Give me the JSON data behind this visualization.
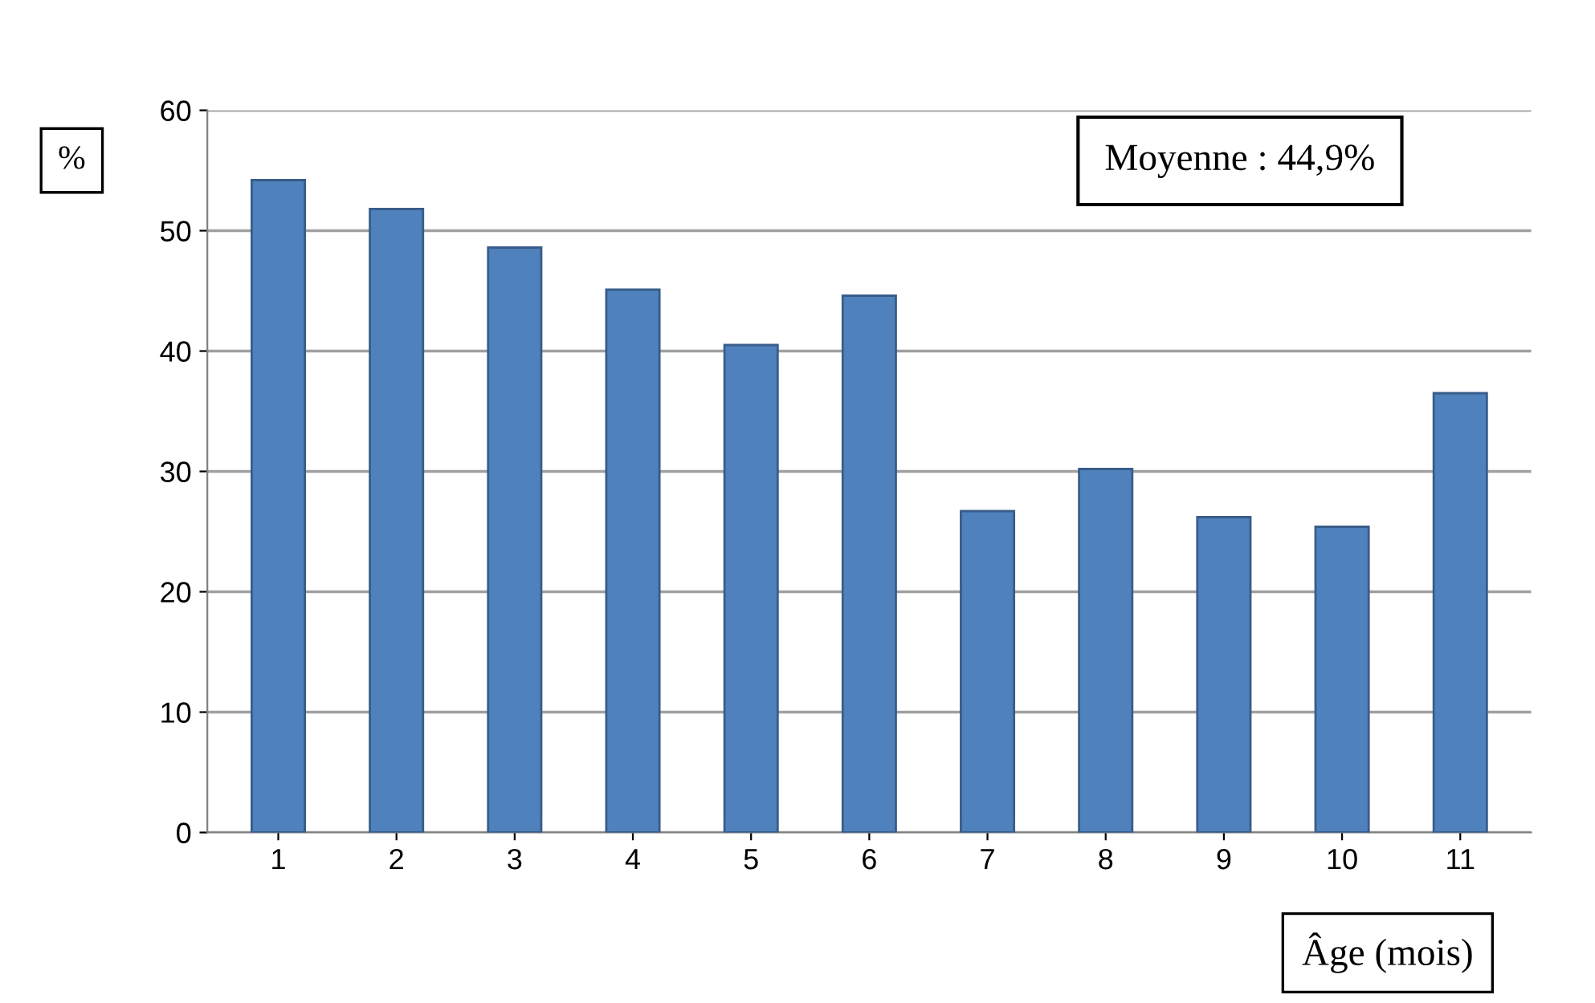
{
  "chart_data": {
    "type": "bar",
    "categories": [
      "1",
      "2",
      "3",
      "4",
      "5",
      "6",
      "7",
      "8",
      "9",
      "10",
      "11"
    ],
    "values": [
      54.2,
      51.8,
      48.6,
      45.1,
      40.5,
      44.6,
      26.7,
      30.2,
      26.2,
      25.4,
      36.5
    ],
    "color": "#4f81bd",
    "ylabel": "%",
    "xlabel": "Âge (mois)",
    "annotations": [
      "Moyenne : 44,9%"
    ],
    "ylim": [
      0,
      60
    ],
    "yticks": [
      0,
      10,
      20,
      30,
      40,
      50,
      60
    ],
    "grid": "y",
    "legend": false
  }
}
